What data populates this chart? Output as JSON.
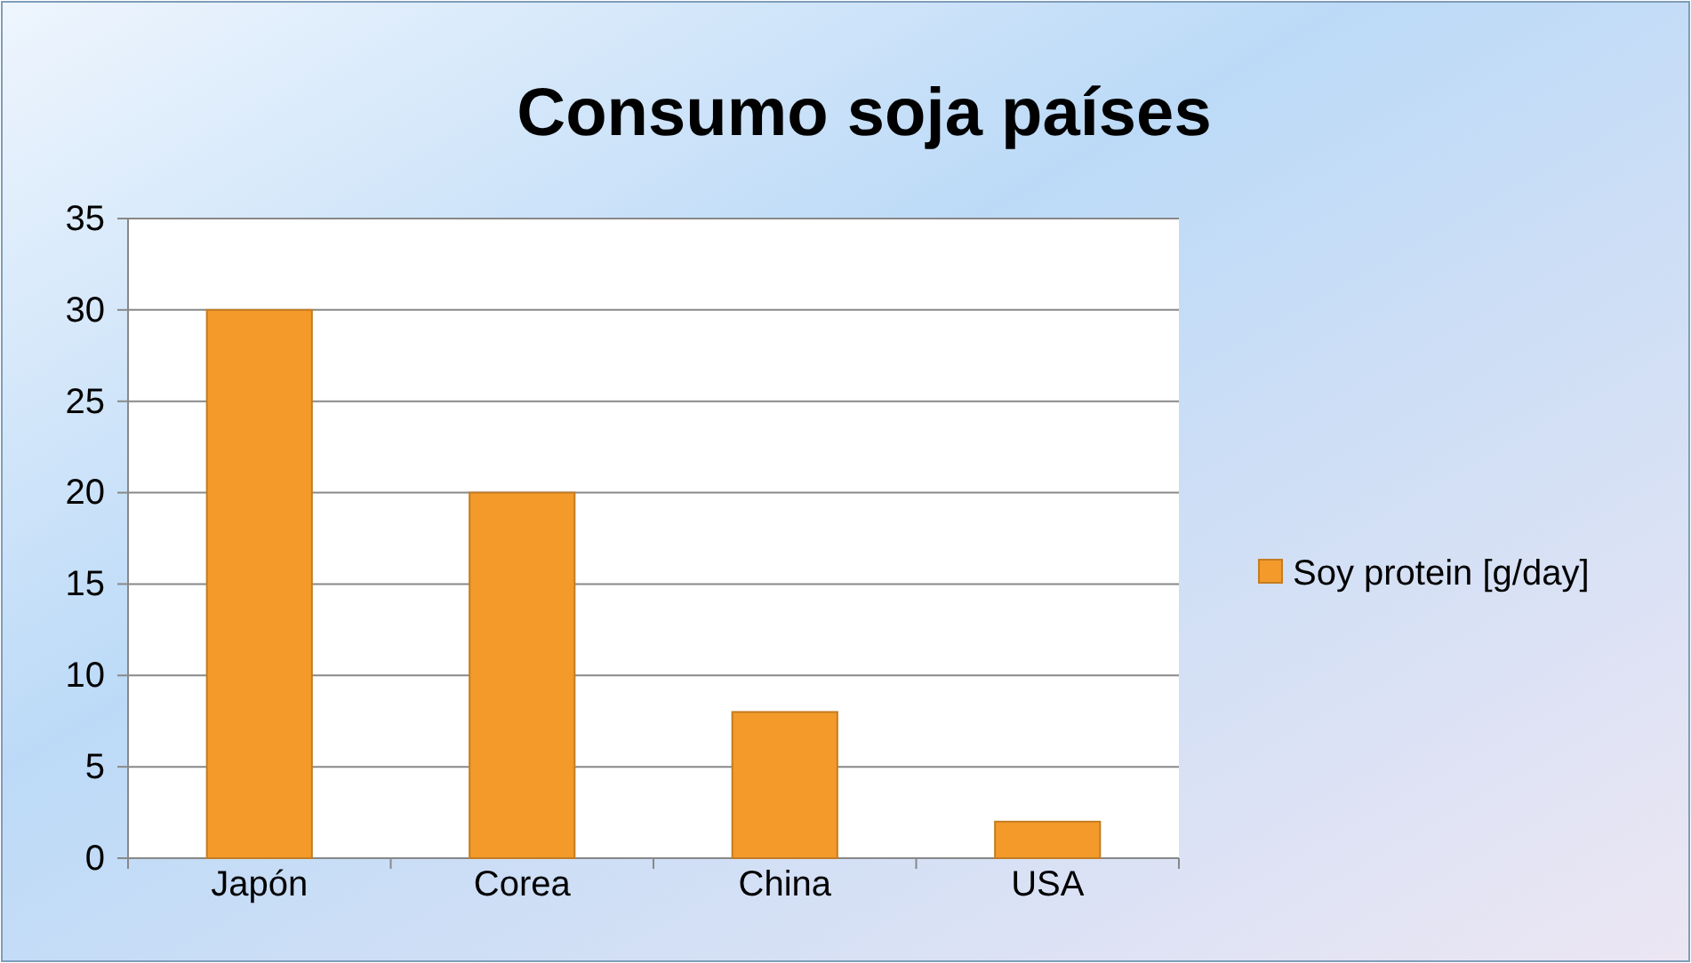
{
  "chart_data": {
    "type": "bar",
    "title": "Consumo soja países",
    "categories": [
      "Japón",
      "Corea",
      "China",
      "USA"
    ],
    "series": [
      {
        "name": "Soy protein [g/day]",
        "color": "#f39a2a",
        "values": [
          30,
          20,
          8,
          2
        ]
      }
    ],
    "ylim": [
      0,
      35
    ],
    "yticks": [
      0,
      5,
      10,
      15,
      20,
      25,
      30,
      35
    ],
    "grid": "y",
    "legend": "right"
  }
}
